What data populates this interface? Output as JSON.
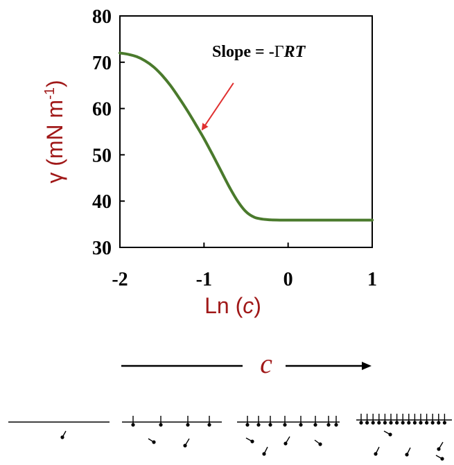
{
  "chart_data": {
    "type": "line",
    "title": "",
    "xlabel": "Ln (c)",
    "ylabel": "γ (mN m-1)",
    "ylabel_main": "γ (mN m",
    "ylabel_sup": "-1",
    "ylabel_close": ")",
    "xlabel_main": "Ln (",
    "xlabel_var": "c",
    "xlabel_close": ")",
    "xlim": [
      -2,
      1
    ],
    "ylim": [
      30,
      80
    ],
    "xticks": [
      -2,
      -1,
      0,
      1
    ],
    "yticks": [
      30,
      40,
      50,
      60,
      70,
      80
    ],
    "grid": false,
    "series": [
      {
        "color": "#4a7a2c",
        "x": [
          -2.0,
          -1.9,
          -1.8,
          -1.7,
          -1.6,
          -1.5,
          -1.4,
          -1.3,
          -1.2,
          -1.1,
          -1.0,
          -0.9,
          -0.8,
          -0.7,
          -0.6,
          -0.5,
          -0.4,
          -0.3,
          -0.2,
          -0.1,
          0.0,
          0.25,
          0.5,
          0.75,
          1.0
        ],
        "y": [
          72.0,
          71.7,
          71.2,
          70.3,
          69.0,
          67.2,
          65.0,
          62.4,
          59.6,
          56.6,
          53.5,
          50.1,
          46.6,
          43.1,
          40.0,
          37.7,
          36.5,
          36.1,
          35.95,
          35.9,
          35.9,
          35.9,
          35.9,
          35.9,
          35.9
        ]
      }
    ],
    "annotation": {
      "text_main": "Slope = -",
      "text_gamma": "Γ",
      "text_rt": "RT",
      "color": "#e03030",
      "arrow_from": [
        -0.65,
        65.5
      ],
      "arrow_to": [
        -1.02,
        55.5
      ]
    }
  },
  "concentration_label": "c",
  "colors": {
    "label_red": "#a01818",
    "axis": "#000000",
    "arrow_red": "#e03030"
  }
}
